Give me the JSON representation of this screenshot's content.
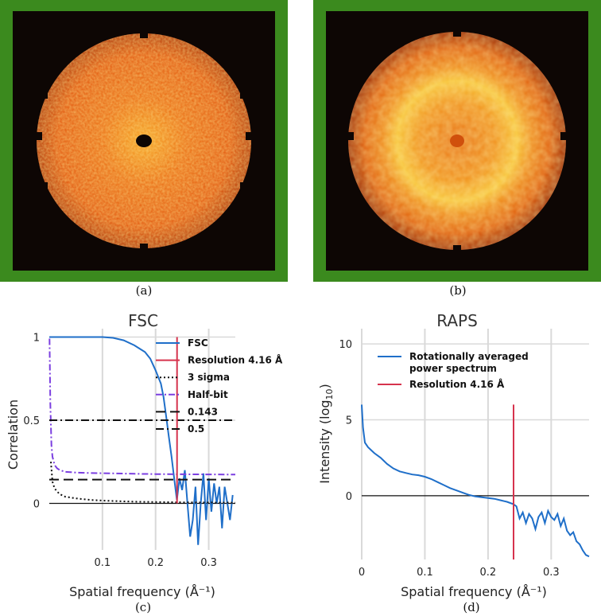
{
  "panels": {
    "a": {
      "caption": "(a)"
    },
    "b": {
      "caption": "(b)"
    },
    "c": {
      "caption": "(c)"
    },
    "d": {
      "caption": "(d)"
    }
  },
  "colors": {
    "frame": "#3b8a1e",
    "background": "#0d0604",
    "fsc": "#1f6fc9",
    "resolution": "#d6334d",
    "halfbit": "#7b3fe0",
    "black": "#111111",
    "grid": "#d9d9d9"
  },
  "chart_data": [
    {
      "type": "line",
      "title": "FSC",
      "xlabel": "Spatial frequency (Å⁻¹)",
      "ylabel": "Correlation",
      "xlim": [
        0,
        0.35
      ],
      "ylim": [
        -0.28,
        1.05
      ],
      "xticks": [
        0.1,
        0.2,
        0.3
      ],
      "xtick_labels": [
        "0.1",
        "0.2",
        "0.3"
      ],
      "yticks": [
        0,
        0.5,
        1
      ],
      "ytick_labels": [
        "0",
        "0.5",
        "1"
      ],
      "legend": [
        "FSC",
        "Resolution 4.16 Å",
        "3 sigma",
        "Half-bit",
        "0.143",
        "0.5"
      ],
      "series": [
        {
          "name": "FSC",
          "x": [
            0,
            0.05,
            0.1,
            0.12,
            0.14,
            0.16,
            0.17,
            0.18,
            0.19,
            0.2,
            0.21,
            0.215,
            0.22,
            0.225,
            0.23,
            0.235,
            0.24,
            0.245,
            0.25,
            0.255,
            0.26,
            0.265,
            0.27,
            0.275,
            0.28,
            0.285,
            0.29,
            0.295,
            0.3,
            0.305,
            0.31,
            0.315,
            0.32,
            0.325,
            0.33,
            0.335,
            0.34,
            0.345
          ],
          "y": [
            1.0,
            1.0,
            1.0,
            0.995,
            0.98,
            0.95,
            0.93,
            0.91,
            0.87,
            0.8,
            0.72,
            0.64,
            0.52,
            0.4,
            0.28,
            0.15,
            0.02,
            0.15,
            0.08,
            0.2,
            0.0,
            -0.2,
            -0.1,
            0.1,
            -0.25,
            0.0,
            0.18,
            -0.1,
            0.15,
            -0.05,
            0.12,
            0.0,
            0.1,
            -0.15,
            0.1,
            0.0,
            -0.1,
            0.05
          ]
        },
        {
          "name": "3 sigma",
          "x": [
            0.003,
            0.006,
            0.01,
            0.015,
            0.02,
            0.03,
            0.05,
            0.08,
            0.12,
            0.16,
            0.2,
            0.25,
            0.3,
            0.35
          ],
          "y": [
            0.25,
            0.13,
            0.09,
            0.07,
            0.055,
            0.04,
            0.03,
            0.02,
            0.014,
            0.01,
            0.008,
            0.006,
            0.005,
            0.004
          ]
        },
        {
          "name": "Half-bit",
          "x": [
            0.0005,
            0.002,
            0.004,
            0.006,
            0.01,
            0.015,
            0.02,
            0.03,
            0.05,
            0.08,
            0.12,
            0.16,
            0.2,
            0.25,
            0.3,
            0.35
          ],
          "y": [
            0.99,
            0.6,
            0.35,
            0.28,
            0.23,
            0.21,
            0.2,
            0.19,
            0.185,
            0.182,
            0.18,
            0.178,
            0.176,
            0.175,
            0.174,
            0.173
          ]
        },
        {
          "name": "0.143",
          "x": [
            0,
            0.35
          ],
          "y": [
            0.143,
            0.143
          ]
        },
        {
          "name": "0.5",
          "x": [
            0,
            0.35
          ],
          "y": [
            0.5,
            0.5
          ]
        },
        {
          "name": "Resolution 4.16 Å",
          "x": [
            0.2404,
            0.2404
          ],
          "y": [
            0,
            1.0
          ]
        }
      ]
    },
    {
      "type": "line",
      "title": "RAPS",
      "xlabel": "Spatial frequency (Å⁻¹)",
      "ylabel": "Intensity (log₁₀)",
      "xlim": [
        0,
        0.36
      ],
      "ylim": [
        -4.2,
        11
      ],
      "xticks": [
        0,
        0.1,
        0.2,
        0.3
      ],
      "xtick_labels": [
        "0",
        "0.1",
        "0.2",
        "0.3"
      ],
      "yticks": [
        0,
        5,
        10
      ],
      "ytick_labels": [
        "0",
        "5",
        "10"
      ],
      "legend": [
        "Rotationally averaged power spectrum",
        "Resolution 4.16 Å"
      ],
      "series": [
        {
          "name": "Rotationally averaged power spectrum",
          "x": [
            0,
            0.002,
            0.005,
            0.01,
            0.015,
            0.02,
            0.03,
            0.04,
            0.05,
            0.06,
            0.07,
            0.08,
            0.09,
            0.1,
            0.11,
            0.12,
            0.13,
            0.14,
            0.15,
            0.16,
            0.17,
            0.18,
            0.19,
            0.2,
            0.21,
            0.22,
            0.23,
            0.24,
            0.245,
            0.25,
            0.255,
            0.26,
            0.265,
            0.27,
            0.275,
            0.28,
            0.285,
            0.29,
            0.295,
            0.3,
            0.305,
            0.31,
            0.315,
            0.32,
            0.325,
            0.33,
            0.335,
            0.34,
            0.345,
            0.35,
            0.355,
            0.36
          ],
          "y": [
            6.0,
            4.5,
            3.5,
            3.2,
            3.0,
            2.8,
            2.5,
            2.1,
            1.8,
            1.6,
            1.5,
            1.4,
            1.35,
            1.25,
            1.1,
            0.9,
            0.7,
            0.5,
            0.35,
            0.2,
            0.05,
            -0.05,
            -0.1,
            -0.15,
            -0.2,
            -0.3,
            -0.4,
            -0.55,
            -0.7,
            -1.5,
            -1.1,
            -1.8,
            -1.2,
            -1.5,
            -2.2,
            -1.4,
            -1.1,
            -1.8,
            -1.0,
            -1.4,
            -1.6,
            -1.2,
            -2.0,
            -1.5,
            -2.3,
            -2.6,
            -2.4,
            -3.0,
            -3.2,
            -3.6,
            -3.9,
            -4.0
          ]
        },
        {
          "name": "Resolution 4.16 Å",
          "x": [
            0.2404,
            0.2404
          ],
          "y": [
            -4.2,
            6.0
          ]
        }
      ]
    }
  ]
}
